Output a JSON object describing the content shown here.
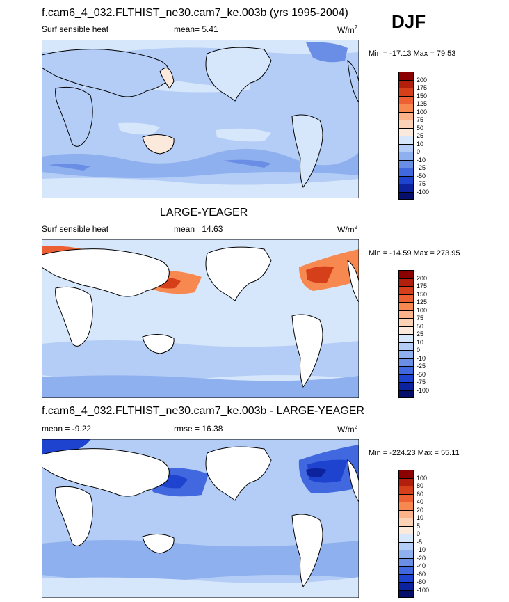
{
  "season": "DJF",
  "panels": [
    {
      "title": "f.cam6_4_032.FLTHIST_ne30.cam7_ke.003b (yrs 1995-2004)",
      "variable": "Surf sensible heat",
      "stat_label": "mean=",
      "stat_value": "5.41",
      "extra_label": "",
      "extra_value": "",
      "units": "W/m",
      "units_sup": "2",
      "minmax": "Min = -17.13 Max =  79.53",
      "cbar_levels": [
        "200",
        "175",
        "150",
        "125",
        "100",
        "75",
        "50",
        "25",
        "10",
        "0",
        "-10",
        "-25",
        "-50",
        "-75",
        "-100"
      ],
      "cbar_colors": [
        "#8b0000",
        "#b2200d",
        "#d5401a",
        "#ec6033",
        "#f78950",
        "#fcb38a",
        "#fbd2b6",
        "#fbeadc",
        "#d6e6fb",
        "#b4cdf6",
        "#8fb0ee",
        "#6a8de6",
        "#4168df",
        "#1e44cf",
        "#0d229d",
        "#060f6b"
      ]
    },
    {
      "title": "LARGE-YEAGER",
      "variable": "Surf sensible heat",
      "stat_label": "mean=",
      "stat_value": "14.63",
      "extra_label": "",
      "extra_value": "",
      "units": "W/m",
      "units_sup": "2",
      "minmax": "Min = -14.59 Max = 273.95",
      "cbar_levels": [
        "200",
        "175",
        "150",
        "125",
        "100",
        "75",
        "50",
        "25",
        "10",
        "0",
        "-10",
        "-25",
        "-50",
        "-75",
        "-100"
      ],
      "cbar_colors": [
        "#8b0000",
        "#b2200d",
        "#d5401a",
        "#ec6033",
        "#f78950",
        "#fcb38a",
        "#fbd2b6",
        "#fbeadc",
        "#d6e6fb",
        "#b4cdf6",
        "#8fb0ee",
        "#6a8de6",
        "#4168df",
        "#1e44cf",
        "#0d229d",
        "#060f6b"
      ]
    },
    {
      "title": "f.cam6_4_032.FLTHIST_ne30.cam7_ke.003b - LARGE-YEAGER",
      "variable": "",
      "stat_label": "mean =",
      "stat_value": "-9.22",
      "extra_label": "rmse =",
      "extra_value": "16.38",
      "units": "W/m",
      "units_sup": "2",
      "minmax": "Min = -224.23 Max =  55.11",
      "cbar_levels": [
        "100",
        "80",
        "60",
        "40",
        "20",
        "10",
        "5",
        "0",
        "-5",
        "-10",
        "-20",
        "-40",
        "-60",
        "-80",
        "-100"
      ],
      "cbar_colors": [
        "#8b0000",
        "#b2200d",
        "#d5401a",
        "#ec6033",
        "#f78950",
        "#fcb38a",
        "#fbd2b6",
        "#fbeadc",
        "#d6e6fb",
        "#b4cdf6",
        "#8fb0ee",
        "#6a8de6",
        "#4168df",
        "#1e44cf",
        "#0d229d",
        "#060f6b"
      ]
    }
  ]
}
